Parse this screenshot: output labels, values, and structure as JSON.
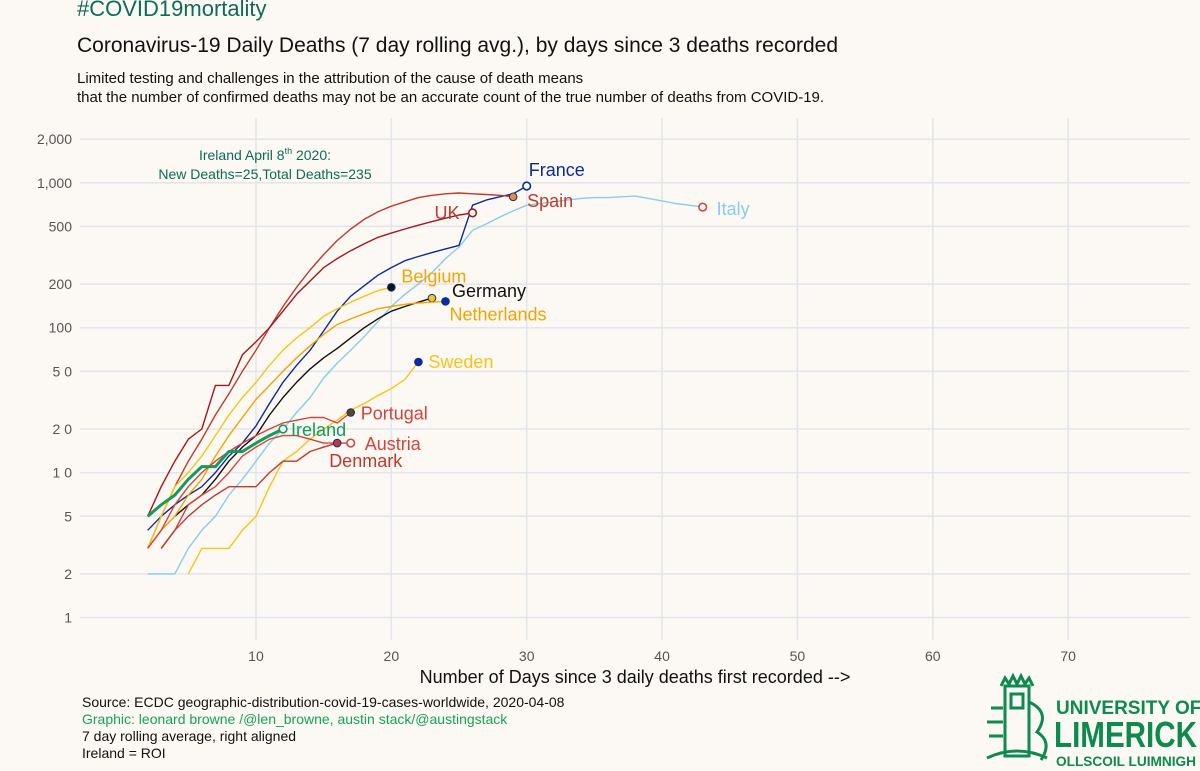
{
  "header": {
    "hashtag": "#COVID19mortality",
    "title": "Coronavirus-19 Daily Deaths (7 day rolling avg.), by days since 3 deaths recorded",
    "subtitle_line1": "Limited testing and challenges in the attribution of the cause of death means",
    "subtitle_line2": "that the number of confirmed deaths may not be an accurate count of the true number of deaths from COVID-19."
  },
  "annotation": {
    "line1_prefix": "Ireland April 8",
    "line1_sup": "th",
    "line1_suffix": " 2020:",
    "line2": "New Deaths=25,Total Deaths=235"
  },
  "footer": {
    "source": "Source:  ECDC geographic-distribution-covid-19-cases-worldwide, 2020-04-08",
    "credit": "Graphic: leonard browne /@len_browne, austin stack/@austingstack",
    "note1": "7 day rolling average, right aligned",
    "note2": "Ireland = ROI"
  },
  "logo": {
    "line1": "UNIVERSITY OF",
    "line2": "LIMERICK",
    "line3": "OLLSCOIL LUIMNIGH",
    "color": "#0d8a4e"
  },
  "chart_data": {
    "type": "line",
    "xlabel": "Number of Days since 3 daily deaths first recorded -->",
    "ylabel": "",
    "xlim": [
      -3,
      79
    ],
    "ylim": [
      0.7,
      2800
    ],
    "yscale": "log",
    "xticks": [
      10,
      20,
      30,
      40,
      50,
      60,
      70
    ],
    "xtick_labels": [
      "10",
      "20",
      "30",
      "40",
      "50",
      "60",
      "70"
    ],
    "yticks": [
      1,
      2,
      5,
      10,
      20,
      50,
      100,
      200,
      500,
      1000,
      2000
    ],
    "ytick_labels": [
      "1",
      "2",
      "5",
      "1 0",
      "2 0",
      "5 0",
      "100",
      "200",
      "500",
      "1,000",
      "2,000"
    ],
    "grid": true,
    "series": [
      {
        "name": "Italy",
        "color": "#87ceeb",
        "width": 1.4,
        "end_marker": "open",
        "end_color": "#d9423a",
        "x": [
          2,
          3,
          4,
          5,
          6,
          7,
          8,
          9,
          10,
          11,
          12,
          13,
          14,
          15,
          16,
          17,
          18,
          19,
          20,
          21,
          22,
          23,
          24,
          25,
          26,
          27,
          28,
          29,
          30,
          31,
          32,
          33,
          34,
          35,
          36,
          37,
          38,
          39,
          40,
          41,
          42,
          43
        ],
        "y": [
          2,
          2,
          2,
          3,
          4,
          5,
          7,
          9,
          12,
          16,
          20,
          26,
          33,
          45,
          57,
          70,
          87,
          110,
          140,
          170,
          200,
          240,
          300,
          360,
          470,
          520,
          580,
          640,
          700,
          720,
          740,
          760,
          780,
          790,
          790,
          800,
          810,
          780,
          750,
          720,
          700,
          680
        ]
      },
      {
        "name": "France",
        "color": "#0a2b9c",
        "width": 1.4,
        "end_marker": "open",
        "end_color": "#0a2b9c",
        "x": [
          2,
          3,
          4,
          5,
          6,
          7,
          8,
          9,
          10,
          11,
          12,
          13,
          14,
          15,
          16,
          17,
          18,
          19,
          20,
          21,
          22,
          23,
          24,
          25,
          26,
          27,
          28,
          29,
          30
        ],
        "y": [
          4,
          5,
          6,
          7,
          8,
          10,
          13,
          16,
          21,
          30,
          42,
          55,
          70,
          95,
          130,
          165,
          195,
          230,
          260,
          290,
          310,
          330,
          350,
          370,
          700,
          760,
          800,
          840,
          950
        ]
      },
      {
        "name": "Spain",
        "color": "#c0392b",
        "width": 1.4,
        "end_marker": "filled",
        "end_color": "#f08a2c",
        "x": [
          2,
          3,
          4,
          5,
          6,
          7,
          8,
          9,
          10,
          11,
          12,
          13,
          14,
          15,
          16,
          17,
          18,
          19,
          20,
          21,
          22,
          23,
          24,
          25,
          26,
          27,
          28,
          29
        ],
        "y": [
          3,
          5,
          8,
          12,
          17,
          25,
          35,
          50,
          70,
          100,
          140,
          190,
          250,
          320,
          400,
          480,
          560,
          630,
          690,
          740,
          790,
          820,
          840,
          850,
          840,
          830,
          820,
          800
        ]
      },
      {
        "name": "UK",
        "color": "#a4161a",
        "width": 1.4,
        "end_marker": "open",
        "end_color": "#a4161a",
        "x": [
          2,
          3,
          4,
          5,
          6,
          7,
          8,
          9,
          10,
          11,
          12,
          13,
          14,
          15,
          16,
          17,
          18,
          19,
          20,
          21,
          22,
          23,
          24,
          25,
          26
        ],
        "y": [
          5,
          8,
          12,
          17,
          20,
          40,
          40,
          65,
          80,
          100,
          130,
          170,
          210,
          260,
          300,
          340,
          380,
          420,
          450,
          480,
          510,
          540,
          570,
          600,
          620
        ]
      },
      {
        "name": "Belgium",
        "color": "#f5c518",
        "width": 1.4,
        "end_marker": "filled",
        "end_color": "#111111",
        "x": [
          2,
          3,
          4,
          5,
          6,
          7,
          8,
          9,
          10,
          11,
          12,
          13,
          14,
          15,
          16,
          17,
          18,
          19,
          20
        ],
        "y": [
          3,
          5,
          8,
          10,
          13,
          18,
          25,
          33,
          42,
          55,
          70,
          85,
          100,
          120,
          135,
          150,
          165,
          180,
          190
        ]
      },
      {
        "name": "Germany",
        "color": "#111111",
        "width": 1.4,
        "end_marker": "filled",
        "end_color": "#f5c518",
        "x": [
          4,
          5,
          6,
          7,
          8,
          9,
          10,
          11,
          12,
          13,
          14,
          15,
          16,
          17,
          18,
          19,
          20,
          21,
          22,
          23
        ],
        "y": [
          5,
          6,
          7,
          9,
          12,
          15,
          18,
          25,
          33,
          42,
          52,
          62,
          72,
          85,
          100,
          115,
          130,
          140,
          150,
          160
        ]
      },
      {
        "name": "Netherlands",
        "color": "#f5a300",
        "width": 1.4,
        "end_marker": "filled",
        "end_color": "#0a2b9c",
        "x": [
          2,
          3,
          4,
          5,
          6,
          7,
          8,
          9,
          10,
          11,
          12,
          13,
          14,
          15,
          16,
          17,
          18,
          19,
          20,
          21,
          22,
          23,
          24
        ],
        "y": [
          3,
          4,
          5,
          7,
          9,
          13,
          18,
          24,
          32,
          40,
          50,
          62,
          75,
          90,
          105,
          115,
          125,
          135,
          140,
          145,
          148,
          150,
          152
        ]
      },
      {
        "name": "Sweden",
        "color": "#f5c518",
        "width": 1.4,
        "end_marker": "filled",
        "end_color": "#0a2b9c",
        "x": [
          5,
          6,
          7,
          8,
          9,
          10,
          11,
          12,
          13,
          14,
          15,
          16,
          17,
          18,
          19,
          20,
          21,
          22
        ],
        "y": [
          2,
          3,
          3,
          3,
          4,
          5,
          8,
          12,
          14,
          17,
          20,
          23,
          27,
          30,
          34,
          38,
          44,
          58
        ]
      },
      {
        "name": "Portugal",
        "color": "#d9423a",
        "width": 1.4,
        "end_marker": "filled",
        "end_color": "#5d4a10",
        "x": [
          2,
          3,
          4,
          5,
          6,
          7,
          8,
          9,
          10,
          11,
          12,
          13,
          14,
          15,
          16,
          17
        ],
        "y": [
          3,
          4,
          6,
          8,
          10,
          12,
          14,
          16,
          18,
          20,
          22,
          23,
          24,
          24,
          22,
          26
        ]
      },
      {
        "name": "Austria",
        "color": "#d9423a",
        "width": 1.4,
        "end_marker": "open",
        "end_color": "#d9423a",
        "x": [
          3,
          4,
          5,
          6,
          7,
          8,
          9,
          10,
          11,
          12,
          13,
          14,
          15,
          16,
          17
        ],
        "y": [
          3,
          4,
          6,
          7,
          8,
          10,
          13,
          15,
          17,
          18,
          18,
          17,
          16,
          16,
          16
        ]
      },
      {
        "name": "Denmark",
        "color": "#c0392b",
        "width": 1.4,
        "end_marker": "filled",
        "end_color": "#c0392b",
        "x": [
          3,
          4,
          5,
          6,
          7,
          8,
          9,
          10,
          11,
          12,
          13,
          14,
          15,
          16
        ],
        "y": [
          3,
          4,
          5,
          6,
          7,
          8,
          8,
          8,
          10,
          12,
          12,
          14,
          15,
          16
        ]
      },
      {
        "name": "Ireland",
        "color": "#159a5b",
        "width": 3,
        "end_marker": "open",
        "end_color": "#159a5b",
        "x": [
          2,
          3,
          4,
          5,
          6,
          7,
          8,
          9,
          10,
          11,
          12
        ],
        "y": [
          5,
          6,
          7,
          9,
          11,
          11,
          14,
          14,
          16,
          18,
          20
        ]
      }
    ]
  }
}
